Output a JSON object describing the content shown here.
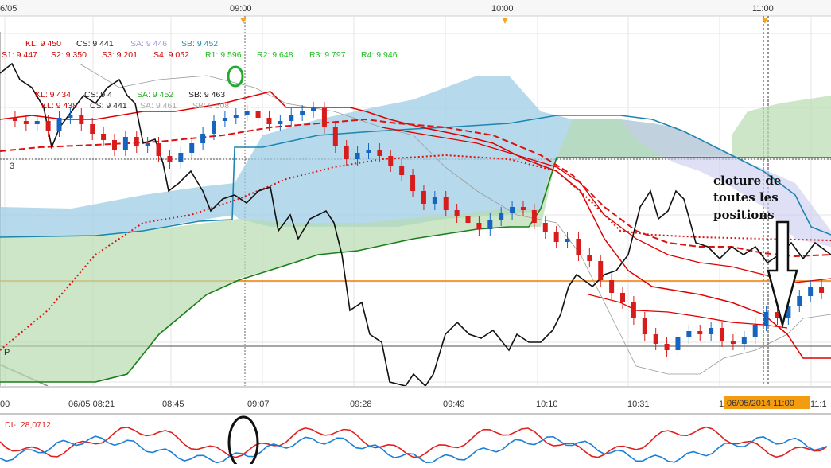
{
  "top_axis": {
    "labels": [
      "6/05",
      "09:00",
      "10:00",
      "11:00"
    ],
    "marker_color": "#f5a623"
  },
  "legend": {
    "row1": [
      {
        "text": "KL: 9 450",
        "color": "#cc0000"
      },
      {
        "text": "CS: 9 441",
        "color": "#222222"
      },
      {
        "text": "SA: 9 446",
        "color": "#9b9bdc"
      },
      {
        "text": "SB: 9 452",
        "color": "#1f8fb3"
      }
    ],
    "row2": [
      {
        "text": "S1: 9 447",
        "color": "#cc0000"
      },
      {
        "text": "S2: 9 350",
        "color": "#cc0000"
      },
      {
        "text": "S3: 9 201",
        "color": "#cc0000"
      },
      {
        "text": "S4: 9 052",
        "color": "#cc0000"
      },
      {
        "text": "R1: 9 596",
        "color": "#22bb22"
      },
      {
        "text": "R2: 9 648",
        "color": "#22bb22"
      },
      {
        "text": "R3: 9 797",
        "color": "#22bb22"
      },
      {
        "text": "R4: 9 946",
        "color": "#22bb22"
      }
    ],
    "row3": [
      {
        "text": "KL: 9 434",
        "color": "#cc0000"
      },
      {
        "text": "CS: 9 4",
        "color": "#222222"
      },
      {
        "text": "SA: 9 452",
        "color": "#22aa22"
      },
      {
        "text": "SB: 9 463",
        "color": "#222222"
      }
    ],
    "row4": [
      {
        "text": "KL: 9 438",
        "color": "#cc0000"
      },
      {
        "text": "CS: 9 441",
        "color": "#222222"
      },
      {
        "text": "SA: 9 461",
        "color": "#aaaaaa"
      },
      {
        "text": "SB: 9 508",
        "color": "#aaaaaa"
      }
    ]
  },
  "side_labels": {
    "level": "3",
    "pivot": "P"
  },
  "annotation": {
    "lines": [
      "cloture de",
      "toutes les",
      "positions"
    ]
  },
  "cursor_label": "06/05/2014 11:00",
  "bottom_axis": {
    "labels": [
      "00",
      "06/05 08:21",
      "08:45",
      "09:07",
      "09:28",
      "09:49",
      "10:10",
      "10:31",
      "1",
      "11:1"
    ]
  },
  "indicator": {
    "label": "DI-: 28,0712",
    "colors": {
      "di_minus": "#e02020",
      "di_plus": "#1a7fd6"
    }
  },
  "colors": {
    "bull": "#1565c0",
    "bear": "#d81b1b",
    "kijun": "#e00000",
    "tenkan_dash": "#dd1111",
    "chikou": "#111111",
    "cloud_bear": "#9ecde6",
    "cloud_bull": "#b8dbb0",
    "span_a": "#1a7f1a",
    "span_b": "#1c86b0",
    "orange_level": "#f07b00",
    "pivot_line": "#888888",
    "gray_line": "#999999"
  },
  "chart_data": {
    "type": "candlestick",
    "description_series": [
      "price candles",
      "Ichimoku (Tenkan, Kijun, Chikou, Senkou A/B cloud)",
      "pivot levels",
      "DI+ / DI- indicator"
    ],
    "x_labels": [
      "06/05 08:21",
      "08:45",
      "09:07",
      "09:28",
      "09:49",
      "10:10",
      "10:31",
      "11:00"
    ],
    "levels": {
      "S1": 9447,
      "S2": 9350,
      "S3": 9201,
      "S4": 9052,
      "R1": 9596,
      "R2": 9648,
      "R3": 9797,
      "R4": 9946,
      "KL": 9450,
      "CS": 9441,
      "SA": 9446,
      "SB": 9452
    },
    "candles_close_px_norm": [
      0.18,
      0.19,
      0.18,
      0.21,
      0.17,
      0.16,
      0.19,
      0.22,
      0.24,
      0.27,
      0.23,
      0.26,
      0.25,
      0.29,
      0.31,
      0.28,
      0.25,
      0.22,
      0.18,
      0.17,
      0.16,
      0.15,
      0.17,
      0.19,
      0.18,
      0.16,
      0.15,
      0.14,
      0.2,
      0.26,
      0.3,
      0.28,
      0.27,
      0.29,
      0.32,
      0.35,
      0.4,
      0.44,
      0.42,
      0.46,
      0.48,
      0.5,
      0.52,
      0.49,
      0.47,
      0.45,
      0.46,
      0.5,
      0.53,
      0.56,
      0.55,
      0.6,
      0.62,
      0.68,
      0.72,
      0.75,
      0.8,
      0.85,
      0.88,
      0.9,
      0.86,
      0.84,
      0.85,
      0.83,
      0.87,
      0.88,
      0.86,
      0.82,
      0.78,
      0.8,
      0.76,
      0.73,
      0.7,
      0.72
    ]
  }
}
